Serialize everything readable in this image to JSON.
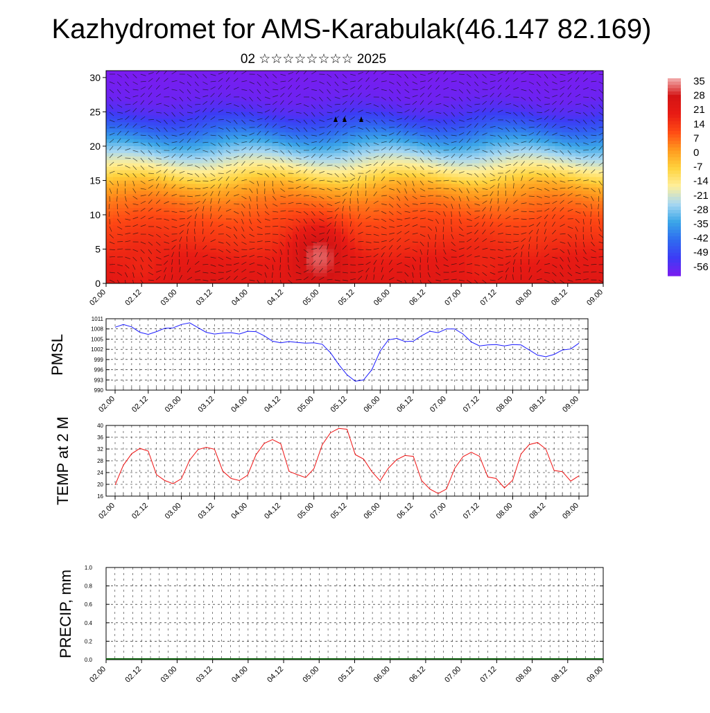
{
  "title": "Kazhydromet for AMS-Karabulak(46.147 82.169)",
  "subtitle": "02 ☆☆☆☆☆☆☆☆ 2025",
  "time_ticks": [
    "02.00",
    "02.12",
    "03.00",
    "03.12",
    "04.00",
    "04.12",
    "05.00",
    "05.12",
    "06.00",
    "06.12",
    "07.00",
    "07.12",
    "08.00",
    "08.12",
    "09.00"
  ],
  "chart_data": [
    {
      "type": "heatmap",
      "title": "",
      "xlabel": "",
      "ylabel": "",
      "ylim": [
        0,
        31
      ],
      "yticks": [
        0,
        5,
        10,
        15,
        20,
        25,
        30
      ],
      "colorbar_labels": [
        "35",
        "28",
        "21",
        "14",
        "7",
        "0",
        "-7",
        "-14",
        "-21",
        "-28",
        "-35",
        "-42",
        "-49",
        "-56"
      ],
      "colorbar_range": [
        -60,
        38
      ],
      "colormap": [
        "#7a1cf0",
        "#3c3cf5",
        "#2f6cf0",
        "#3aa6e8",
        "#a8d8f2",
        "#ffef9a",
        "#ffd23c",
        "#ff9a1e",
        "#ff4b14",
        "#e81b14",
        "#d41414",
        "#f3b0b0"
      ],
      "profile": {
        "heights": [
          0,
          3,
          6,
          9,
          12,
          14,
          15.5,
          17,
          19,
          21,
          23,
          25,
          27,
          29,
          31
        ],
        "temps": [
          24,
          21,
          16,
          12,
          6,
          0,
          -8,
          -16,
          -26,
          -36,
          -46,
          -54,
          -58,
          -59,
          -60
        ]
      },
      "warm_cores": [
        {
          "x": 5.0,
          "y": 4.0,
          "peak": 35
        },
        {
          "x": 2.5,
          "y": 3.0,
          "peak": 18
        },
        {
          "x": 7.3,
          "y": 3.0,
          "peak": 18
        }
      ]
    },
    {
      "type": "line",
      "ylabel": "PMSL",
      "ylim": [
        990,
        1011
      ],
      "yticks": [
        990,
        993,
        996,
        999,
        1002,
        1005,
        1008,
        1011
      ],
      "color": "#1a1aff",
      "x": [
        2.0,
        2.125,
        2.25,
        2.375,
        2.5,
        2.625,
        2.75,
        2.875,
        3.0,
        3.125,
        3.25,
        3.375,
        3.5,
        3.625,
        3.75,
        3.875,
        4.0,
        4.125,
        4.25,
        4.375,
        4.5,
        4.625,
        4.75,
        4.875,
        5.0,
        5.125,
        5.25,
        5.375,
        5.5,
        5.625,
        5.75,
        5.875,
        6.0,
        6.125,
        6.25,
        6.375,
        6.5,
        6.625,
        6.75,
        6.875,
        7.0,
        7.125,
        7.25,
        7.375,
        7.5,
        7.625,
        7.75,
        7.875,
        8.0,
        8.125,
        8.25,
        8.375,
        8.5,
        8.625,
        8.75,
        8.875,
        9.0
      ],
      "y": [
        1008.5,
        1009.3,
        1008.6,
        1007.0,
        1006.4,
        1007.2,
        1008.2,
        1008.3,
        1009.3,
        1009.8,
        1008.4,
        1007.0,
        1006.5,
        1006.8,
        1006.9,
        1006.5,
        1007.3,
        1007.2,
        1006.0,
        1004.4,
        1003.9,
        1004.3,
        1004.0,
        1003.8,
        1003.9,
        1003.5,
        1001.0,
        997.5,
        994.5,
        992.6,
        993.0,
        996.0,
        1001.5,
        1004.8,
        1005.2,
        1004.3,
        1004.4,
        1006.0,
        1007.3,
        1006.9,
        1008.0,
        1008.0,
        1006.5,
        1004.2,
        1003.0,
        1003.3,
        1003.4,
        1003.0,
        1003.4,
        1003.3,
        1001.8,
        1000.3,
        999.8,
        1000.5,
        1001.8,
        1002.1,
        1003.8
      ]
    },
    {
      "type": "line",
      "ylabel": "TEMP at 2 M",
      "ylim": [
        16,
        40
      ],
      "yticks": [
        16,
        20,
        24,
        28,
        32,
        36,
        40
      ],
      "color": "#ee1111",
      "x": [
        2.0,
        2.125,
        2.25,
        2.375,
        2.5,
        2.625,
        2.75,
        2.875,
        3.0,
        3.125,
        3.25,
        3.375,
        3.5,
        3.625,
        3.75,
        3.875,
        4.0,
        4.125,
        4.25,
        4.375,
        4.5,
        4.625,
        4.75,
        4.875,
        5.0,
        5.125,
        5.25,
        5.375,
        5.5,
        5.625,
        5.75,
        5.875,
        6.0,
        6.125,
        6.25,
        6.375,
        6.5,
        6.625,
        6.75,
        6.875,
        7.0,
        7.125,
        7.25,
        7.375,
        7.5,
        7.625,
        7.75,
        7.875,
        8.0,
        8.125,
        8.25,
        8.375,
        8.5,
        8.625,
        8.75,
        8.875,
        9.0
      ],
      "y": [
        19.8,
        26.5,
        30.4,
        32.2,
        31.3,
        23.3,
        21.3,
        20.2,
        21.9,
        28.2,
        31.8,
        32.6,
        31.9,
        24.5,
        22.0,
        21.3,
        23.1,
        30.0,
        33.9,
        35.2,
        33.8,
        24.4,
        23.3,
        22.3,
        25.3,
        33.4,
        37.5,
        39.0,
        38.7,
        30.1,
        28.6,
        24.3,
        21.2,
        25.5,
        28.4,
        29.8,
        29.5,
        21.3,
        18.4,
        16.9,
        18.4,
        25.4,
        29.4,
        30.9,
        29.5,
        22.5,
        22.0,
        18.8,
        21.4,
        30.3,
        33.5,
        34.2,
        32.0,
        24.7,
        24.3,
        21.1,
        22.9
      ]
    },
    {
      "type": "bar",
      "ylabel": "PRECIP, mm",
      "ylim": [
        0.0,
        1.0
      ],
      "yticks": [
        "0.0",
        "0.2",
        "0.4",
        "0.6",
        "0.8",
        "1.0"
      ],
      "color": "#0a5a0a",
      "values": []
    }
  ]
}
